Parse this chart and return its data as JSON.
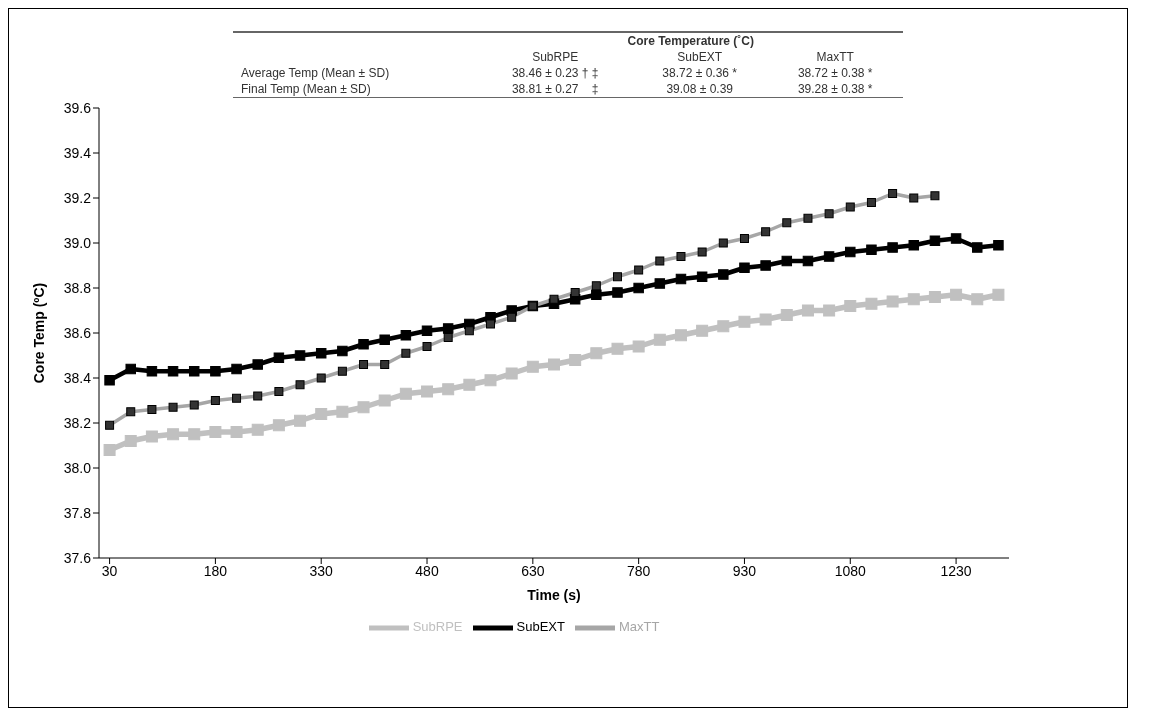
{
  "chart_data": {
    "type": "line",
    "xlabel": "Time (s)",
    "ylabel": "Core Temp (ºC)",
    "annotations": [
      "Core Temperature (˚C)",
      "SubRPE",
      "SubEXT",
      "MaxTT",
      "Average Temp (Mean ± SD)",
      "38.46 ± 0.23 † ‡",
      "38.72 ± 0.36 *",
      "38.72 ± 0.38 *",
      "Final Temp (Mean ± SD)",
      "38.81 ± 0.27    ‡",
      "39.08 ± 0.39",
      "39.28 ± 0.38 *"
    ],
    "x": [
      30,
      60,
      90,
      120,
      150,
      180,
      210,
      240,
      270,
      300,
      330,
      360,
      390,
      420,
      450,
      480,
      510,
      540,
      570,
      600,
      630,
      660,
      690,
      720,
      750,
      780,
      810,
      840,
      870,
      900,
      930,
      960,
      990,
      1020,
      1050,
      1080,
      1110,
      1140,
      1170,
      1200,
      1230,
      1260,
      1290
    ],
    "series": [
      {
        "name": "SubRPE",
        "color": "#c0c0c0",
        "values": [
          38.08,
          38.12,
          38.14,
          38.15,
          38.15,
          38.16,
          38.16,
          38.17,
          38.19,
          38.21,
          38.24,
          38.25,
          38.27,
          38.3,
          38.33,
          38.34,
          38.35,
          38.37,
          38.39,
          38.42,
          38.45,
          38.46,
          38.48,
          38.51,
          38.53,
          38.54,
          38.57,
          38.59,
          38.61,
          38.63,
          38.65,
          38.66,
          38.68,
          38.7,
          38.7,
          38.72,
          38.73,
          38.74,
          38.75,
          38.76,
          38.77,
          38.75,
          38.77
        ]
      },
      {
        "name": "SubEXT",
        "color": "#000000",
        "values": [
          38.39,
          38.44,
          38.43,
          38.43,
          38.43,
          38.43,
          38.44,
          38.46,
          38.49,
          38.5,
          38.51,
          38.52,
          38.55,
          38.57,
          38.59,
          38.61,
          38.62,
          38.64,
          38.67,
          38.7,
          38.72,
          38.73,
          38.75,
          38.77,
          38.78,
          38.8,
          38.82,
          38.84,
          38.85,
          38.86,
          38.89,
          38.9,
          38.92,
          38.92,
          38.94,
          38.96,
          38.97,
          38.98,
          38.99,
          39.01,
          39.02,
          38.98,
          38.99
        ]
      },
      {
        "name": "MaxTT",
        "color": "#a6a6a6",
        "values": [
          38.19,
          38.25,
          38.26,
          38.27,
          38.28,
          38.3,
          38.31,
          38.32,
          38.34,
          38.37,
          38.4,
          38.43,
          38.46,
          38.46,
          38.51,
          38.54,
          38.58,
          38.61,
          38.64,
          38.67,
          38.72,
          38.75,
          38.78,
          38.81,
          38.85,
          38.88,
          38.92,
          38.94,
          38.96,
          39.0,
          39.02,
          39.05,
          39.09,
          39.11,
          39.13,
          39.16,
          39.18,
          39.22,
          39.2,
          39.21,
          null,
          null,
          null
        ]
      }
    ],
    "xlim": [
      15,
      1305
    ],
    "xticks": [
      30,
      180,
      330,
      480,
      630,
      780,
      930,
      1080,
      1230
    ],
    "ylim": [
      37.6,
      39.6
    ],
    "yticks": [
      {
        "value": 37.6,
        "label": "37.6"
      },
      {
        "value": 37.8,
        "label": "37.8"
      },
      {
        "value": 38,
        "label": "38.0"
      },
      {
        "value": 38.2,
        "label": "38.2"
      },
      {
        "value": 38.4,
        "label": "38.4"
      },
      {
        "value": 38.6,
        "label": "38.6"
      },
      {
        "value": 38.8,
        "label": "38.8"
      },
      {
        "value": 39,
        "label": "39.0"
      },
      {
        "value": 39.2,
        "label": "39.2"
      },
      {
        "value": 39.4,
        "label": "39.4"
      },
      {
        "value": 39.6,
        "label": "39.6"
      }
    ],
    "grid": false,
    "legend": "bottom",
    "marker": "square"
  }
}
